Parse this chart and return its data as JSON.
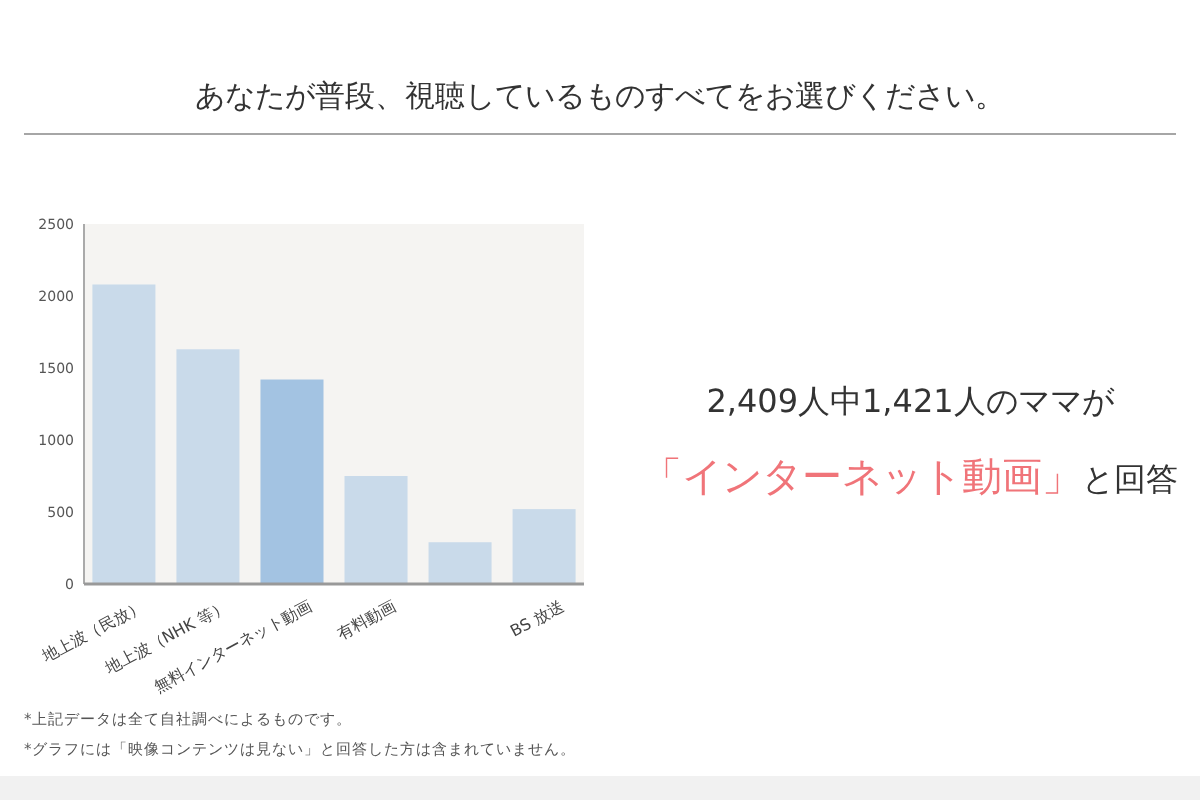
{
  "chart_data": {
    "type": "bar",
    "title": "あなたが普段、視聴しているものすべてをお選びください。",
    "categories": [
      "地上波（民放）",
      "地上波（NHK 等）",
      "無料インターネット動画",
      "有料動画",
      null,
      "BS 放送"
    ],
    "values": [
      2080,
      1630,
      1420,
      750,
      290,
      520
    ],
    "colors": [
      "#c9daea",
      "#c9daea",
      "#a3c3e2",
      "#c9daea",
      "#c9daea",
      "#c9daea"
    ],
    "ylim": [
      0,
      2500
    ],
    "yticks": [
      0,
      500,
      1000,
      1500,
      2000,
      2500
    ],
    "grid": false,
    "annotations": [
      "2,409人中1,421人のママが",
      "「インターネット動画」",
      "と回答",
      "*上記データは全て自社調べによるものです。",
      "*グラフには「映像コンテンツは見ない」と回答した方は含まれていません。"
    ]
  }
}
